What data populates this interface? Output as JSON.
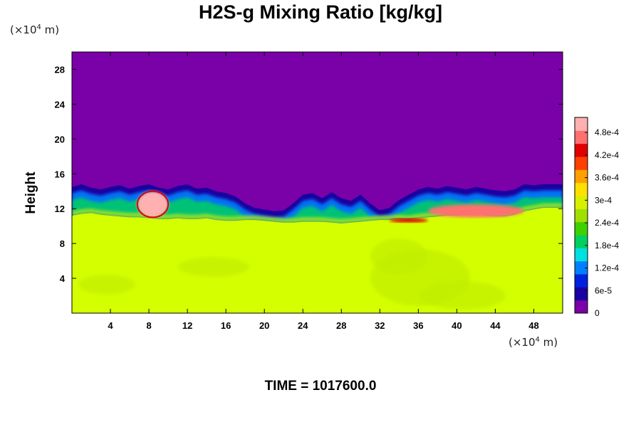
{
  "chart_data": {
    "type": "heatmap",
    "title": "H2S-g Mixing Ratio [kg/kg]",
    "xlabel": "",
    "ylabel": "Height",
    "x_unit_prefix": "(×10",
    "x_unit_exp": "4",
    "x_unit_suffix": " m)",
    "y_unit_prefix": "(×10",
    "y_unit_exp": "4",
    "y_unit_suffix": " m)",
    "xlim": [
      0,
      51
    ],
    "ylim": [
      0,
      30
    ],
    "x_ticks": [
      4,
      8,
      12,
      16,
      20,
      24,
      28,
      32,
      36,
      40,
      44,
      48
    ],
    "y_ticks": [
      4,
      8,
      12,
      16,
      20,
      24,
      28
    ],
    "colorbar": {
      "range": [
        0,
        0.00052
      ],
      "ticks": [
        {
          "value": 0,
          "label": "0"
        },
        {
          "value": 6e-05,
          "label": "6e-5"
        },
        {
          "value": 0.00012,
          "label": "1.2e-4"
        },
        {
          "value": 0.00018,
          "label": "1.8e-4"
        },
        {
          "value": 0.00024,
          "label": "2.4e-4"
        },
        {
          "value": 0.0003,
          "label": "3e-4"
        },
        {
          "value": 0.00036,
          "label": "3.6e-4"
        },
        {
          "value": 0.00042,
          "label": "4.2e-4"
        },
        {
          "value": 0.00048,
          "label": "4.8e-4"
        }
      ],
      "colors": [
        "#7a00a8",
        "#1a00a0",
        "#0020e0",
        "#0080ff",
        "#00e0e0",
        "#00d060",
        "#40d000",
        "#a0e000",
        "#d8f000",
        "#ffe000",
        "#ffa000",
        "#ff4000",
        "#e00000",
        "#ff7070",
        "#ffb0b0"
      ]
    },
    "fields": {
      "upper_value": 0,
      "lower_value": 0.00035,
      "interface_height": 13.5,
      "dominant_colors": {
        "upper": "#7a00a8",
        "lower": "#d4ff00",
        "patch": "#c0ec00"
      }
    },
    "interface_profile": {
      "x": [
        0,
        1,
        2,
        3,
        4,
        5,
        6,
        7,
        8,
        9,
        10,
        11,
        12,
        13,
        14,
        15,
        16,
        17,
        18,
        19,
        20,
        21,
        22,
        23,
        24,
        25,
        26,
        27,
        28,
        29,
        30,
        31,
        32,
        33,
        34,
        35,
        36,
        37,
        38,
        39,
        40,
        41,
        42,
        43,
        44,
        45,
        46,
        47,
        48,
        49,
        50,
        51
      ],
      "top": [
        14.5,
        14.8,
        14.4,
        14.2,
        14.5,
        14.7,
        14.3,
        14.6,
        14.8,
        14.4,
        14.2,
        14.6,
        14.8,
        14.3,
        14.4,
        14.0,
        13.8,
        13.4,
        12.6,
        12.1,
        11.9,
        11.7,
        11.8,
        12.6,
        13.6,
        13.8,
        13.2,
        13.9,
        13.2,
        12.9,
        13.6,
        12.6,
        11.8,
        12.1,
        13.0,
        13.6,
        14.2,
        14.5,
        14.3,
        14.6,
        14.4,
        14.2,
        14.5,
        14.3,
        14.1,
        14.0,
        14.2,
        14.8,
        14.7,
        14.8,
        14.8,
        14.8
      ],
      "bottom": [
        11.2,
        11.4,
        11.5,
        11.3,
        11.2,
        11.1,
        11.0,
        11.0,
        10.9,
        10.8,
        10.8,
        10.9,
        10.8,
        10.8,
        10.9,
        10.7,
        10.6,
        10.6,
        10.7,
        10.7,
        10.6,
        10.5,
        10.4,
        10.4,
        10.5,
        10.5,
        10.5,
        10.4,
        10.3,
        10.4,
        10.5,
        10.6,
        10.7,
        10.7,
        10.8,
        10.7,
        10.9,
        11.0,
        11.1,
        11.2,
        11.2,
        11.3,
        11.5,
        11.2,
        11.1,
        11.1,
        11.3,
        11.7,
        11.9,
        12.1,
        12.1,
        12.1
      ]
    },
    "features": [
      {
        "kind": "high",
        "x": [
          6.8,
          10.0
        ],
        "y": [
          11.0,
          14.0
        ],
        "value": 0.0005
      },
      {
        "kind": "high",
        "x": [
          33.0,
          37.0
        ],
        "y": [
          10.4,
          10.9
        ],
        "value": 0.00045
      },
      {
        "kind": "high",
        "x": [
          37.0,
          47.0
        ],
        "y": [
          11.0,
          12.5
        ],
        "value": 0.00048
      }
    ],
    "time_text": "TIME = 1017600.0"
  }
}
